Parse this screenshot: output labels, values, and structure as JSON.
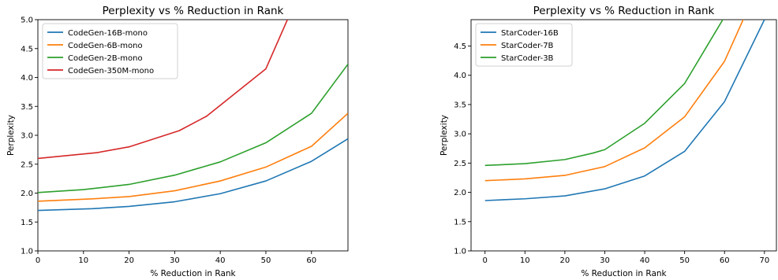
{
  "chart_data": [
    {
      "type": "line",
      "title": "Perplexity vs % Reduction in Rank",
      "xlabel": "% Reduction in Rank",
      "ylabel": "Perplexity",
      "xlim": [
        0,
        68
      ],
      "ylim": [
        1.0,
        5.0
      ],
      "xticks": [
        0,
        10,
        20,
        30,
        40,
        50,
        60
      ],
      "yticks": [
        1.0,
        1.5,
        2.0,
        2.5,
        3.0,
        3.5,
        4.0,
        4.5,
        5.0
      ],
      "grid": false,
      "legend": "upper-left",
      "series": [
        {
          "name": "CodeGen-16B-mono",
          "color": "#1f77b4",
          "x": [
            0,
            12,
            20,
            30,
            40,
            50,
            60,
            68
          ],
          "y": [
            1.7,
            1.73,
            1.77,
            1.85,
            1.99,
            2.21,
            2.55,
            2.94
          ]
        },
        {
          "name": "CodeGen-6B-mono",
          "color": "#ff7f0e",
          "x": [
            0,
            12,
            20,
            30,
            40,
            50,
            60,
            68
          ],
          "y": [
            1.86,
            1.9,
            1.94,
            2.04,
            2.21,
            2.45,
            2.81,
            3.38
          ]
        },
        {
          "name": "CodeGen-2B-mono",
          "color": "#2ca02c",
          "x": [
            0,
            10,
            20,
            30,
            40,
            50,
            60,
            68
          ],
          "y": [
            2.01,
            2.06,
            2.15,
            2.31,
            2.54,
            2.87,
            3.38,
            4.23
          ]
        },
        {
          "name": "CodeGen-350M-mono",
          "color": "#d62728",
          "x": [
            0,
            13,
            20,
            31,
            37,
            50,
            55
          ],
          "y": [
            2.6,
            2.7,
            2.8,
            3.08,
            3.33,
            4.15,
            5.05
          ]
        }
      ]
    },
    {
      "type": "line",
      "title": "Perplexity vs % Reduction in Rank",
      "xlabel": "% Reduction in Rank",
      "ylabel": "Perplexity",
      "xlim": [
        -3.5,
        73
      ],
      "ylim": [
        1.0,
        4.95
      ],
      "xticks": [
        0,
        10,
        20,
        30,
        40,
        50,
        60,
        70
      ],
      "yticks": [
        1.0,
        1.5,
        2.0,
        2.5,
        3.0,
        3.5,
        4.0,
        4.5
      ],
      "grid": false,
      "legend": "upper-left",
      "series": [
        {
          "name": "StarCoder-16B",
          "color": "#1f77b4",
          "x": [
            0,
            10,
            20,
            30,
            40,
            50,
            60,
            70
          ],
          "y": [
            1.86,
            1.89,
            1.94,
            2.06,
            2.28,
            2.7,
            3.55,
            4.95
          ]
        },
        {
          "name": "StarCoder-7B",
          "color": "#ff7f0e",
          "x": [
            0,
            10,
            20,
            30,
            40,
            50,
            60,
            65
          ],
          "y": [
            2.2,
            2.23,
            2.29,
            2.44,
            2.76,
            3.29,
            4.24,
            5.0
          ]
        },
        {
          "name": "StarCoder-3B",
          "color": "#2ca02c",
          "x": [
            0,
            10,
            20,
            27,
            30,
            40,
            50,
            60
          ],
          "y": [
            2.46,
            2.49,
            2.56,
            2.67,
            2.73,
            3.18,
            3.86,
            5.0
          ]
        }
      ]
    }
  ]
}
